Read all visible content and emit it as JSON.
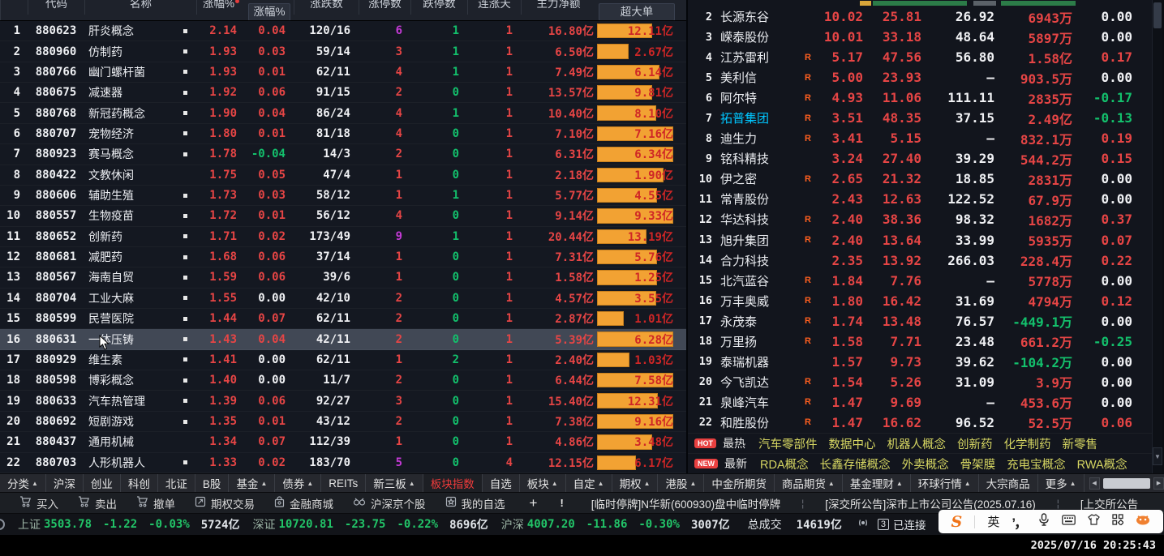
{
  "colors": {
    "red": "#e64545",
    "green": "#13c06c",
    "purple": "#c43ad6",
    "orange_bar": "#f2a233",
    "cyan": "#00c6ff",
    "yellow": "#d6d662",
    "active_tab": "#f03b3b",
    "index_green": "#22c468"
  },
  "icons": {
    "down_arrow": "▼",
    "left_arrow": "◀",
    "right_arrow": "▶",
    "tab_arrow": "▲"
  },
  "left_table": {
    "headers": [
      {
        "t": "代码",
        "clip": true
      },
      {
        "t": "名称",
        "clip": true
      },
      {
        "t": "涨幅%",
        "clip": true,
        "dot": true
      },
      {
        "t": "涨幅%",
        "boxed": true
      },
      {
        "t": "涨跌数",
        "clip": true
      },
      {
        "t": "涨停数",
        "clip": true
      },
      {
        "t": "跌停数",
        "clip": true
      },
      {
        "t": "连涨天",
        "clip": true
      },
      {
        "t": "主力净额",
        "clip": true
      },
      {
        "t": "超大单",
        "boxed": true
      }
    ],
    "rows": [
      {
        "n": "1",
        "code": "880623",
        "name": "肝炎概念",
        "mark": true,
        "chg": "2.14",
        "chg2": "0.04",
        "chg2c": "red",
        "ud": "120/16",
        "up": "6",
        "upc": "pur",
        "dn": "1",
        "cz": "1",
        "amt": "16.80亿",
        "big": "12.11亿",
        "bw": 72,
        "sel": false
      },
      {
        "n": "2",
        "code": "880960",
        "name": "仿制药",
        "mark": true,
        "chg": "1.93",
        "chg2": "0.03",
        "chg2c": "red",
        "ud": "59/14",
        "up": "3",
        "upc": "red",
        "dn": "1",
        "cz": "1",
        "amt": "6.50亿",
        "big": "2.67亿",
        "bw": 41,
        "sel": false
      },
      {
        "n": "3",
        "code": "880766",
        "name": "幽门螺杆菌",
        "mark": true,
        "chg": "1.93",
        "chg2": "0.01",
        "chg2c": "red",
        "ud": "62/11",
        "up": "4",
        "upc": "red",
        "dn": "1",
        "cz": "1",
        "amt": "7.49亿",
        "big": "6.14亿",
        "bw": 82,
        "sel": false
      },
      {
        "n": "4",
        "code": "880675",
        "name": "减速器",
        "mark": true,
        "chg": "1.92",
        "chg2": "0.06",
        "chg2c": "red",
        "ud": "91/15",
        "up": "2",
        "upc": "red",
        "dn": "0",
        "cz": "1",
        "amt": "13.57亿",
        "big": "9.81亿",
        "bw": 72,
        "sel": false
      },
      {
        "n": "5",
        "code": "880768",
        "name": "新冠药概念",
        "mark": true,
        "chg": "1.90",
        "chg2": "0.04",
        "chg2c": "red",
        "ud": "86/24",
        "up": "4",
        "upc": "red",
        "dn": "1",
        "cz": "1",
        "amt": "10.40亿",
        "big": "8.10亿",
        "bw": 78,
        "sel": false
      },
      {
        "n": "6",
        "code": "880707",
        "name": "宠物经济",
        "mark": true,
        "chg": "1.80",
        "chg2": "0.01",
        "chg2c": "red",
        "ud": "81/18",
        "up": "4",
        "upc": "red",
        "dn": "0",
        "cz": "1",
        "amt": "7.10亿",
        "big": "7.16亿",
        "bw": 100,
        "sel": false
      },
      {
        "n": "7",
        "code": "880923",
        "name": "赛马概念",
        "mark": true,
        "chg": "1.78",
        "chg2": "-0.04",
        "chg2c": "grn",
        "ud": "14/3",
        "up": "2",
        "upc": "red",
        "dn": "0",
        "cz": "1",
        "amt": "6.31亿",
        "big": "6.34亿",
        "bw": 100,
        "sel": false
      },
      {
        "n": "8",
        "code": "880422",
        "name": "文教休闲",
        "mark": false,
        "chg": "1.75",
        "chg2": "0.05",
        "chg2c": "red",
        "ud": "47/4",
        "up": "1",
        "upc": "red",
        "dn": "0",
        "cz": "1",
        "amt": "2.18亿",
        "big": "1.90亿",
        "bw": 87,
        "sel": false
      },
      {
        "n": "9",
        "code": "880606",
        "name": "辅助生殖",
        "mark": true,
        "chg": "1.73",
        "chg2": "0.03",
        "chg2c": "red",
        "ud": "58/12",
        "up": "1",
        "upc": "red",
        "dn": "1",
        "cz": "1",
        "amt": "5.77亿",
        "big": "4.55亿",
        "bw": 79,
        "sel": false
      },
      {
        "n": "10",
        "code": "880557",
        "name": "生物疫苗",
        "mark": true,
        "chg": "1.72",
        "chg2": "0.01",
        "chg2c": "red",
        "ud": "56/12",
        "up": "4",
        "upc": "red",
        "dn": "0",
        "cz": "1",
        "amt": "9.14亿",
        "big": "9.33亿",
        "bw": 100,
        "sel": false
      },
      {
        "n": "11",
        "code": "880652",
        "name": "创新药",
        "mark": true,
        "chg": "1.71",
        "chg2": "0.02",
        "chg2c": "red",
        "ud": "173/49",
        "up": "9",
        "upc": "pur",
        "dn": "1",
        "cz": "1",
        "amt": "20.44亿",
        "big": "13.19亿",
        "bw": 65,
        "sel": false
      },
      {
        "n": "12",
        "code": "880681",
        "name": "减肥药",
        "mark": true,
        "chg": "1.68",
        "chg2": "0.06",
        "chg2c": "red",
        "ud": "37/14",
        "up": "1",
        "upc": "red",
        "dn": "0",
        "cz": "1",
        "amt": "7.31亿",
        "big": "5.76亿",
        "bw": 79,
        "sel": false
      },
      {
        "n": "13",
        "code": "880567",
        "name": "海南自贸",
        "mark": true,
        "chg": "1.59",
        "chg2": "0.06",
        "chg2c": "red",
        "ud": "39/6",
        "up": "1",
        "upc": "red",
        "dn": "0",
        "cz": "1",
        "amt": "1.58亿",
        "big": "1.25亿",
        "bw": 79,
        "sel": false
      },
      {
        "n": "14",
        "code": "880704",
        "name": "工业大麻",
        "mark": true,
        "chg": "1.55",
        "chg2": "0.00",
        "chg2c": "wht",
        "ud": "42/10",
        "up": "2",
        "upc": "red",
        "dn": "0",
        "cz": "1",
        "amt": "4.57亿",
        "big": "3.55亿",
        "bw": 78,
        "sel": false
      },
      {
        "n": "15",
        "code": "880599",
        "name": "民营医院",
        "mark": true,
        "chg": "1.44",
        "chg2": "0.07",
        "chg2c": "red",
        "ud": "62/11",
        "up": "2",
        "upc": "red",
        "dn": "0",
        "cz": "1",
        "amt": "2.87亿",
        "big": "1.01亿",
        "bw": 35,
        "sel": false
      },
      {
        "n": "16",
        "code": "880631",
        "name": "一体压铸",
        "mark": true,
        "chg": "1.43",
        "chg2": "0.04",
        "chg2c": "red",
        "ud": "42/11",
        "up": "2",
        "upc": "red",
        "dn": "0",
        "cz": "1",
        "amt": "5.39亿",
        "big": "6.28亿",
        "bw": 100,
        "sel": true
      },
      {
        "n": "17",
        "code": "880929",
        "name": "维生素",
        "mark": true,
        "chg": "1.41",
        "chg2": "0.00",
        "chg2c": "wht",
        "ud": "62/11",
        "up": "1",
        "upc": "red",
        "dn": "2",
        "cz": "1",
        "amt": "2.40亿",
        "big": "1.03亿",
        "bw": 43,
        "sel": false
      },
      {
        "n": "18",
        "code": "880598",
        "name": "博彩概念",
        "mark": true,
        "chg": "1.40",
        "chg2": "0.00",
        "chg2c": "wht",
        "ud": "11/7",
        "up": "2",
        "upc": "red",
        "dn": "0",
        "cz": "1",
        "amt": "6.44亿",
        "big": "7.58亿",
        "bw": 100,
        "sel": false
      },
      {
        "n": "19",
        "code": "880633",
        "name": "汽车热管理",
        "mark": true,
        "chg": "1.39",
        "chg2": "0.06",
        "chg2c": "red",
        "ud": "92/27",
        "up": "3",
        "upc": "red",
        "dn": "0",
        "cz": "1",
        "amt": "15.40亿",
        "big": "12.31亿",
        "bw": 80,
        "sel": false
      },
      {
        "n": "20",
        "code": "880692",
        "name": "短剧游戏",
        "mark": true,
        "chg": "1.35",
        "chg2": "0.01",
        "chg2c": "red",
        "ud": "43/12",
        "up": "2",
        "upc": "red",
        "dn": "0",
        "cz": "1",
        "amt": "7.38亿",
        "big": "9.16亿",
        "bw": 100,
        "sel": false
      },
      {
        "n": "21",
        "code": "880437",
        "name": "通用机械",
        "mark": false,
        "chg": "1.34",
        "chg2": "0.07",
        "chg2c": "red",
        "ud": "112/39",
        "up": "1",
        "upc": "red",
        "dn": "0",
        "cz": "1",
        "amt": "4.86亿",
        "big": "3.48亿",
        "bw": 72,
        "sel": false
      },
      {
        "n": "22",
        "code": "880703",
        "name": "人形机器人",
        "mark": true,
        "chg": "1.33",
        "chg2": "0.02",
        "chg2c": "red",
        "ud": "183/70",
        "up": "5",
        "upc": "pur",
        "dn": "0",
        "cz": "4",
        "amt": "12.15亿",
        "big": "6.17亿",
        "bw": 51,
        "sel": false
      }
    ]
  },
  "right_table": {
    "rows": [
      {
        "n": "2",
        "name": "长源东谷",
        "cyan": false,
        "r": false,
        "p1": "10.02",
        "p2": "25.81",
        "p3": "26.92",
        "p4": "6943万",
        "p4c": "red",
        "p5": "0.00",
        "p5c": "wht"
      },
      {
        "n": "3",
        "name": "嵘泰股份",
        "cyan": false,
        "r": false,
        "p1": "10.01",
        "p2": "33.18",
        "p3": "48.64",
        "p4": "5897万",
        "p4c": "red",
        "p5": "0.00",
        "p5c": "wht"
      },
      {
        "n": "4",
        "name": "江苏雷利",
        "cyan": false,
        "r": true,
        "p1": "5.17",
        "p2": "47.56",
        "p3": "56.80",
        "p4": "1.58亿",
        "p4c": "red",
        "p5": "0.17",
        "p5c": "red"
      },
      {
        "n": "5",
        "name": "美利信",
        "cyan": false,
        "r": true,
        "p1": "5.00",
        "p2": "23.93",
        "p3": "—",
        "p4": "903.5万",
        "p4c": "red",
        "p5": "0.00",
        "p5c": "wht"
      },
      {
        "n": "6",
        "name": "阿尔特",
        "cyan": false,
        "r": true,
        "p1": "4.93",
        "p2": "11.06",
        "p3": "111.11",
        "p4": "2835万",
        "p4c": "red",
        "p5": "-0.17",
        "p5c": "grn"
      },
      {
        "n": "7",
        "name": "拓普集团",
        "cyan": true,
        "r": true,
        "p1": "3.51",
        "p2": "48.35",
        "p3": "37.15",
        "p4": "2.49亿",
        "p4c": "red",
        "p5": "-0.13",
        "p5c": "grn"
      },
      {
        "n": "8",
        "name": "迪生力",
        "cyan": false,
        "r": true,
        "p1": "3.41",
        "p2": "5.15",
        "p3": "—",
        "p4": "832.1万",
        "p4c": "red",
        "p5": "0.19",
        "p5c": "red"
      },
      {
        "n": "9",
        "name": "铭科精技",
        "cyan": false,
        "r": false,
        "p1": "3.24",
        "p2": "27.40",
        "p3": "39.29",
        "p4": "544.2万",
        "p4c": "red",
        "p5": "0.15",
        "p5c": "red"
      },
      {
        "n": "10",
        "name": "伊之密",
        "cyan": false,
        "r": true,
        "p1": "2.65",
        "p2": "21.32",
        "p3": "18.85",
        "p4": "2831万",
        "p4c": "red",
        "p5": "0.00",
        "p5c": "wht"
      },
      {
        "n": "11",
        "name": "常青股份",
        "cyan": false,
        "r": false,
        "p1": "2.43",
        "p2": "12.63",
        "p3": "122.52",
        "p4": "67.9万",
        "p4c": "red",
        "p5": "0.00",
        "p5c": "wht"
      },
      {
        "n": "12",
        "name": "华达科技",
        "cyan": false,
        "r": true,
        "p1": "2.40",
        "p2": "38.36",
        "p3": "98.32",
        "p4": "1682万",
        "p4c": "red",
        "p5": "0.37",
        "p5c": "red"
      },
      {
        "n": "13",
        "name": "旭升集团",
        "cyan": false,
        "r": true,
        "p1": "2.40",
        "p2": "13.64",
        "p3": "33.99",
        "p4": "5935万",
        "p4c": "red",
        "p5": "0.07",
        "p5c": "red"
      },
      {
        "n": "14",
        "name": "合力科技",
        "cyan": false,
        "r": false,
        "p1": "2.35",
        "p2": "13.92",
        "p3": "266.03",
        "p4": "228.4万",
        "p4c": "red",
        "p5": "0.22",
        "p5c": "red"
      },
      {
        "n": "15",
        "name": "北汽蓝谷",
        "cyan": false,
        "r": true,
        "p1": "1.84",
        "p2": "7.76",
        "p3": "—",
        "p4": "5778万",
        "p4c": "red",
        "p5": "0.00",
        "p5c": "wht"
      },
      {
        "n": "16",
        "name": "万丰奥威",
        "cyan": false,
        "r": true,
        "p1": "1.80",
        "p2": "16.42",
        "p3": "31.69",
        "p4": "4794万",
        "p4c": "red",
        "p5": "0.12",
        "p5c": "red"
      },
      {
        "n": "17",
        "name": "永茂泰",
        "cyan": false,
        "r": true,
        "p1": "1.74",
        "p2": "13.48",
        "p3": "76.57",
        "p4": "-449.1万",
        "p4c": "grn",
        "p5": "0.00",
        "p5c": "wht"
      },
      {
        "n": "18",
        "name": "万里扬",
        "cyan": false,
        "r": true,
        "p1": "1.58",
        "p2": "7.71",
        "p3": "23.48",
        "p4": "661.2万",
        "p4c": "red",
        "p5": "-0.25",
        "p5c": "grn"
      },
      {
        "n": "19",
        "name": "泰瑞机器",
        "cyan": false,
        "r": false,
        "p1": "1.57",
        "p2": "9.73",
        "p3": "39.62",
        "p4": "-104.2万",
        "p4c": "grn",
        "p5": "0.00",
        "p5c": "wht"
      },
      {
        "n": "20",
        "name": "今飞凯达",
        "cyan": false,
        "r": true,
        "p1": "1.54",
        "p2": "5.26",
        "p3": "31.09",
        "p4": "3.9万",
        "p4c": "red",
        "p5": "0.00",
        "p5c": "wht"
      },
      {
        "n": "21",
        "name": "泉峰汽车",
        "cyan": false,
        "r": true,
        "p1": "1.47",
        "p2": "9.69",
        "p3": "—",
        "p4": "453.6万",
        "p4c": "red",
        "p5": "0.00",
        "p5c": "wht"
      },
      {
        "n": "22",
        "name": "和胜股份",
        "cyan": false,
        "r": true,
        "p1": "1.47",
        "p2": "16.62",
        "p3": "96.52",
        "p4": "52.5万",
        "p4c": "red",
        "p5": "0.06",
        "p5c": "red"
      }
    ]
  },
  "hot": {
    "hot_badge": "HOT",
    "hot_label": "最热",
    "hot_items": [
      "汽车零部件",
      "数据中心",
      "机器人概念",
      "创新药",
      "化学制药",
      "新零售"
    ],
    "new_badge": "NEW",
    "new_label": "最新",
    "new_items": [
      "RDA概念",
      "长鑫存储概念",
      "外卖概念",
      "骨架膜",
      "充电宝概念",
      "RWA概念"
    ]
  },
  "tabs": [
    {
      "label": "分类",
      "arrow": true
    },
    {
      "label": "沪深"
    },
    {
      "label": "创业"
    },
    {
      "label": "科创"
    },
    {
      "label": "北证"
    },
    {
      "label": "B股"
    },
    {
      "label": "基金",
      "arrow": true
    },
    {
      "label": "债券",
      "arrow": true
    },
    {
      "label": "REITs"
    },
    {
      "label": "新三板",
      "arrow": true
    },
    {
      "label": "板块指数",
      "active": true
    },
    {
      "label": "自选"
    },
    {
      "label": "板块",
      "arrow": true
    },
    {
      "label": "自定",
      "arrow": true
    },
    {
      "label": "期权",
      "arrow": true
    },
    {
      "label": "港股",
      "arrow": true
    },
    {
      "label": "中金所期货"
    },
    {
      "label": "商品期货",
      "arrow": true
    },
    {
      "label": "基金理财",
      "arrow": true
    },
    {
      "label": "环球行情",
      "arrow": true
    },
    {
      "label": "大宗商品"
    },
    {
      "label": "更多",
      "arrow": true
    }
  ],
  "toolbar": {
    "items": [
      {
        "label": "买入",
        "icon": "cart"
      },
      {
        "label": "卖出",
        "icon": "cart"
      },
      {
        "label": "撤单",
        "icon": "cart"
      },
      {
        "label": "期权交易",
        "icon": "doc"
      },
      {
        "label": "金融商城",
        "icon": "bag"
      },
      {
        "label": "沪深京个股",
        "icon": "stocks"
      },
      {
        "label": "我的自选",
        "icon": "starbox"
      }
    ],
    "plus_label": "+",
    "alert_label": "!"
  },
  "announcements": [
    "[临时停牌]N华新(600930)盘中临时停牌",
    "[深交所公告]深市上市公司公告(2025.07.16)",
    "[上交所公告"
  ],
  "status": {
    "indices": [
      {
        "label": "上证",
        "value": "3503.78",
        "chg": "-1.22",
        "pct": "-0.03%",
        "amt": "5724亿"
      },
      {
        "label": "深证",
        "value": "10720.81",
        "chg": "-23.75",
        "pct": "-0.22%",
        "amt": "8696亿"
      },
      {
        "label": "沪深",
        "value": "4007.20",
        "chg": "-11.86",
        "pct": "-0.30%",
        "amt": "3007亿"
      }
    ],
    "total_label": "总成交",
    "total_value": "14619亿",
    "conn_count": "3",
    "conn_label": "已连接"
  },
  "ime": {
    "logo": "S",
    "lang": "英",
    "punct": "’，"
  },
  "clock": "2025/07/16 20:25:43"
}
